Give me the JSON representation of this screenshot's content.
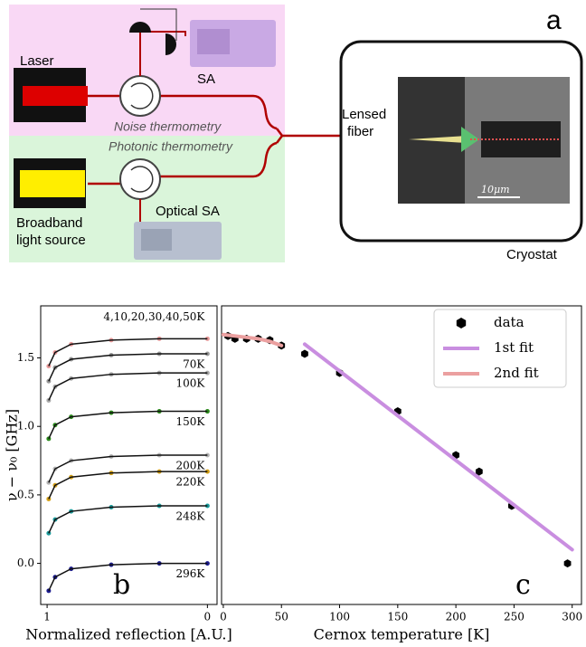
{
  "diagram": {
    "panel_label": "a",
    "laser": "Laser",
    "sa": "SA",
    "noise": "Noise thermometry",
    "photonic": "Photonic thermometry",
    "broadband": [
      "Broadband",
      "light source"
    ],
    "optical_sa": "Optical SA",
    "lensed_fiber": [
      "Lensed",
      "fiber"
    ],
    "cryostat": "Cryostat",
    "scale_bar": "10μm"
  },
  "chart_data": [
    {
      "type": "resonance",
      "panel_label": "b",
      "x_label": "Normalized reflection [A.U.]",
      "y_label": "ν − ν₀ [GHz]",
      "xlim": [
        1.04,
        -0.06
      ],
      "xticks": [
        1,
        0
      ],
      "ylim": [
        -0.3,
        1.88
      ],
      "yticks": [
        {
          "value": 0,
          "label": "0.0"
        },
        {
          "value": 0.5,
          "label": "0.5"
        },
        {
          "value": 1,
          "label": "1.0"
        },
        {
          "value": 1.5,
          "label": "1.5"
        }
      ],
      "series": [
        {
          "name": "4,10,20,30,40,50K",
          "color": "#e89a9a",
          "x": [
            0,
            0.3,
            0.6,
            0.85,
            0.95,
            0.99
          ],
          "y": [
            1.64,
            1.64,
            1.63,
            1.6,
            1.54,
            1.44
          ]
        },
        {
          "name": "70K",
          "color": "#999999",
          "x": [
            0,
            0.3,
            0.6,
            0.85,
            0.95,
            0.99
          ],
          "y": [
            1.53,
            1.53,
            1.52,
            1.49,
            1.43,
            1.33
          ]
        },
        {
          "name": "100K",
          "color": "#aaaaaa",
          "x": [
            0,
            0.3,
            0.6,
            0.85,
            0.95,
            0.99
          ],
          "y": [
            1.39,
            1.39,
            1.38,
            1.35,
            1.29,
            1.19
          ]
        },
        {
          "name": "150K",
          "color": "#2a8a1a",
          "x": [
            0,
            0.3,
            0.6,
            0.85,
            0.95,
            0.99
          ],
          "y": [
            1.11,
            1.11,
            1.1,
            1.07,
            1.01,
            0.91
          ]
        },
        {
          "name": "200K",
          "color": "#b5b5b5",
          "x": [
            0,
            0.3,
            0.6,
            0.85,
            0.95,
            0.99
          ],
          "y": [
            0.79,
            0.79,
            0.78,
            0.75,
            0.69,
            0.59
          ]
        },
        {
          "name": "220K",
          "color": "#d4a017",
          "x": [
            0,
            0.3,
            0.6,
            0.85,
            0.95,
            0.99
          ],
          "y": [
            0.67,
            0.67,
            0.66,
            0.63,
            0.57,
            0.47
          ]
        },
        {
          "name": "248K",
          "color": "#1a9a9a",
          "x": [
            0,
            0.3,
            0.6,
            0.85,
            0.95,
            0.99
          ],
          "y": [
            0.42,
            0.42,
            0.41,
            0.38,
            0.32,
            0.22
          ]
        },
        {
          "name": "296K",
          "color": "#1a1a8c",
          "x": [
            0,
            0.3,
            0.6,
            0.85,
            0.95,
            0.99
          ],
          "y": [
            0,
            0,
            -0.01,
            -0.04,
            -0.1,
            -0.2
          ]
        }
      ]
    },
    {
      "type": "scatter",
      "panel_label": "c",
      "x_label": "Cernox temperature [K]",
      "xlim": [
        -1.5,
        308
      ],
      "xticks": [
        0,
        50,
        100,
        150,
        200,
        250,
        300
      ],
      "ylim": [
        -0.3,
        1.88
      ],
      "series": [
        {
          "name": "data",
          "color": "#000000",
          "kind": "points",
          "x": [
            4,
            10,
            20,
            30,
            40,
            50,
            70,
            100,
            150,
            200,
            220,
            248,
            296
          ],
          "y": [
            1.66,
            1.64,
            1.64,
            1.64,
            1.63,
            1.59,
            1.53,
            1.39,
            1.11,
            0.79,
            0.67,
            0.42,
            0.0
          ]
        },
        {
          "name": "1st fit",
          "color": "#c98ee0",
          "kind": "line",
          "x": [
            70,
            300
          ],
          "y": [
            1.6,
            0.1
          ]
        },
        {
          "name": "2nd fit",
          "color": "#eba0a0",
          "kind": "line",
          "x": [
            0,
            10,
            20,
            30,
            40,
            50
          ],
          "y": [
            1.67,
            1.66,
            1.65,
            1.64,
            1.62,
            1.59
          ]
        }
      ]
    }
  ]
}
